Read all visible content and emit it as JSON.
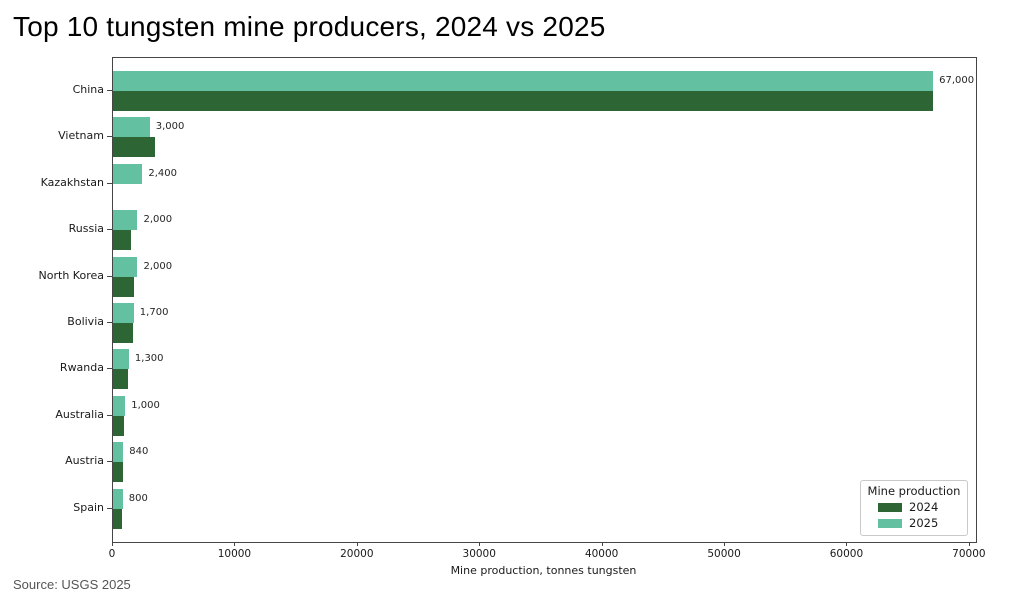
{
  "title": "Top 10 tungsten mine producers, 2024 vs 2025",
  "source": "Source: USGS 2025",
  "chart_data": {
    "type": "bar",
    "orientation": "horizontal",
    "title": "Top 10 tungsten mine producers, 2024 vs 2025",
    "xlabel": "Mine production, tonnes tungsten",
    "ylabel": "",
    "categories": [
      "China",
      "Vietnam",
      "Kazakhstan",
      "Russia",
      "North Korea",
      "Bolivia",
      "Rwanda",
      "Australia",
      "Austria",
      "Spain"
    ],
    "series": [
      {
        "name": "2024",
        "color": "#2d6634",
        "values": [
          67000,
          3400,
          0,
          1500,
          1700,
          1600,
          1200,
          900,
          800,
          700
        ]
      },
      {
        "name": "2025",
        "color": "#63c0a0",
        "values": [
          67000,
          3000,
          2400,
          2000,
          2000,
          1700,
          1300,
          1000,
          840,
          800
        ]
      }
    ],
    "bar_labels": [
      "67,000",
      "3,000",
      "2,400",
      "2,000",
      "2,000",
      "1,700",
      "1,300",
      "1,000",
      "840",
      "800"
    ],
    "x_ticks": [
      0,
      10000,
      20000,
      30000,
      40000,
      50000,
      60000,
      70000
    ],
    "x_tick_labels": [
      "0",
      "10000",
      "20000",
      "30000",
      "40000",
      "50000",
      "60000",
      "70000"
    ],
    "xlim": [
      0,
      70500
    ],
    "grid": "off",
    "legend": {
      "title": "Mine production",
      "position": "lower right",
      "entries": [
        {
          "label": "2024",
          "color": "#2d6634"
        },
        {
          "label": "2025",
          "color": "#63c0a0"
        }
      ]
    }
  }
}
